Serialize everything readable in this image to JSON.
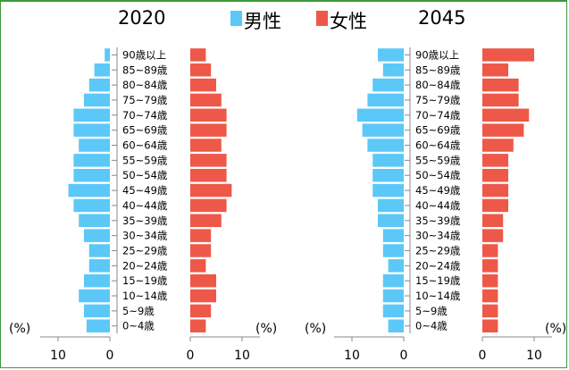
{
  "colors": {
    "male": "#5bc8f8",
    "female": "#ee5848",
    "axis": "#888888"
  },
  "legend": {
    "male_label": "男性",
    "female_label": "女性"
  },
  "unit_label": "(%)",
  "age_groups": [
    "0~4歳",
    "5~9歳",
    "10~14歳",
    "15~19歳",
    "20~24歳",
    "25~29歳",
    "30~34歳",
    "35~39歳",
    "40~44歳",
    "45~49歳",
    "50~54歳",
    "55~59歳",
    "60~64歳",
    "65~69歳",
    "70~74歳",
    "75~79歳",
    "80~84歳",
    "85~89歳",
    "90歳以上"
  ],
  "chart_data": [
    {
      "type": "bar",
      "title": "2020",
      "categories": [
        "0~4歳",
        "5~9歳",
        "10~14歳",
        "15~19歳",
        "20~24歳",
        "25~29歳",
        "30~34歳",
        "35~39歳",
        "40~44歳",
        "45~49歳",
        "50~54歳",
        "55~59歳",
        "60~64歳",
        "65~69歳",
        "70~74歳",
        "75~79歳",
        "80~84歳",
        "85~89歳",
        "90歳以上"
      ],
      "series": [
        {
          "name": "男性",
          "values": [
            4.5,
            5,
            6,
            5,
            4,
            4,
            5,
            6,
            7,
            8,
            7,
            7,
            6,
            7,
            7,
            5,
            4,
            3,
            1
          ]
        },
        {
          "name": "女性",
          "values": [
            3,
            4,
            5,
            5,
            3,
            4,
            4,
            6,
            7,
            8,
            7,
            7,
            6,
            7,
            7,
            6,
            5,
            4,
            3
          ]
        }
      ],
      "xlim": [
        0,
        10
      ],
      "xticks": [
        "10",
        "0",
        "0",
        "10"
      ],
      "xlabel": "(%)"
    },
    {
      "type": "bar",
      "title": "2045",
      "categories": [
        "0~4歳",
        "5~9歳",
        "10~14歳",
        "15~19歳",
        "20~24歳",
        "25~29歳",
        "30~34歳",
        "35~39歳",
        "40~44歳",
        "45~49歳",
        "50~54歳",
        "55~59歳",
        "60~64歳",
        "65~69歳",
        "70~74歳",
        "75~79歳",
        "80~84歳",
        "85~89歳",
        "90歳以上"
      ],
      "series": [
        {
          "name": "男性",
          "values": [
            3,
            4,
            4,
            4,
            3,
            4,
            4,
            5,
            5,
            6,
            6,
            6,
            7,
            8,
            9,
            7,
            6,
            4,
            5
          ]
        },
        {
          "name": "女性",
          "values": [
            3,
            3,
            3,
            3,
            3,
            3,
            4,
            4,
            5,
            5,
            5,
            5,
            6,
            8,
            9,
            7,
            7,
            5,
            10
          ]
        }
      ],
      "xlim": [
        0,
        10
      ],
      "xticks": [
        "10",
        "0",
        "0",
        "10"
      ],
      "xlabel": "(%)"
    }
  ]
}
